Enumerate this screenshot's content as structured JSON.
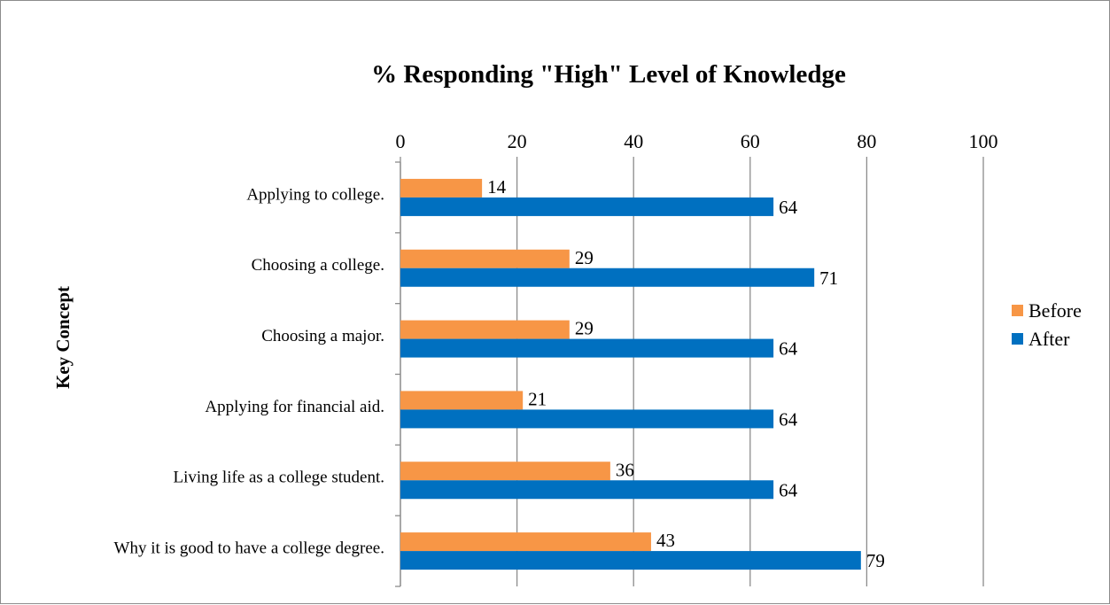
{
  "chart_data": {
    "type": "bar",
    "orientation": "horizontal",
    "title": "% Responding \"High\" Level of Knowledge",
    "ylabel": "Key Concept",
    "xlabel": "",
    "xlim": [
      0,
      100
    ],
    "x_ticks": [
      "0",
      "20",
      "40",
      "60",
      "80",
      "100"
    ],
    "categories": [
      "Applying to college.",
      "Choosing a college.",
      "Choosing a major.",
      "Applying for financial aid.",
      "Living life as a college student.",
      "Why it is good to have a college degree."
    ],
    "series": [
      {
        "name": "Before",
        "color": "#f79646",
        "values": [
          14,
          29,
          29,
          21,
          36,
          43
        ]
      },
      {
        "name": "After",
        "color": "#0070c0",
        "values": [
          64,
          71,
          64,
          64,
          64,
          79
        ]
      }
    ],
    "grid": true,
    "legend_position": "right"
  }
}
